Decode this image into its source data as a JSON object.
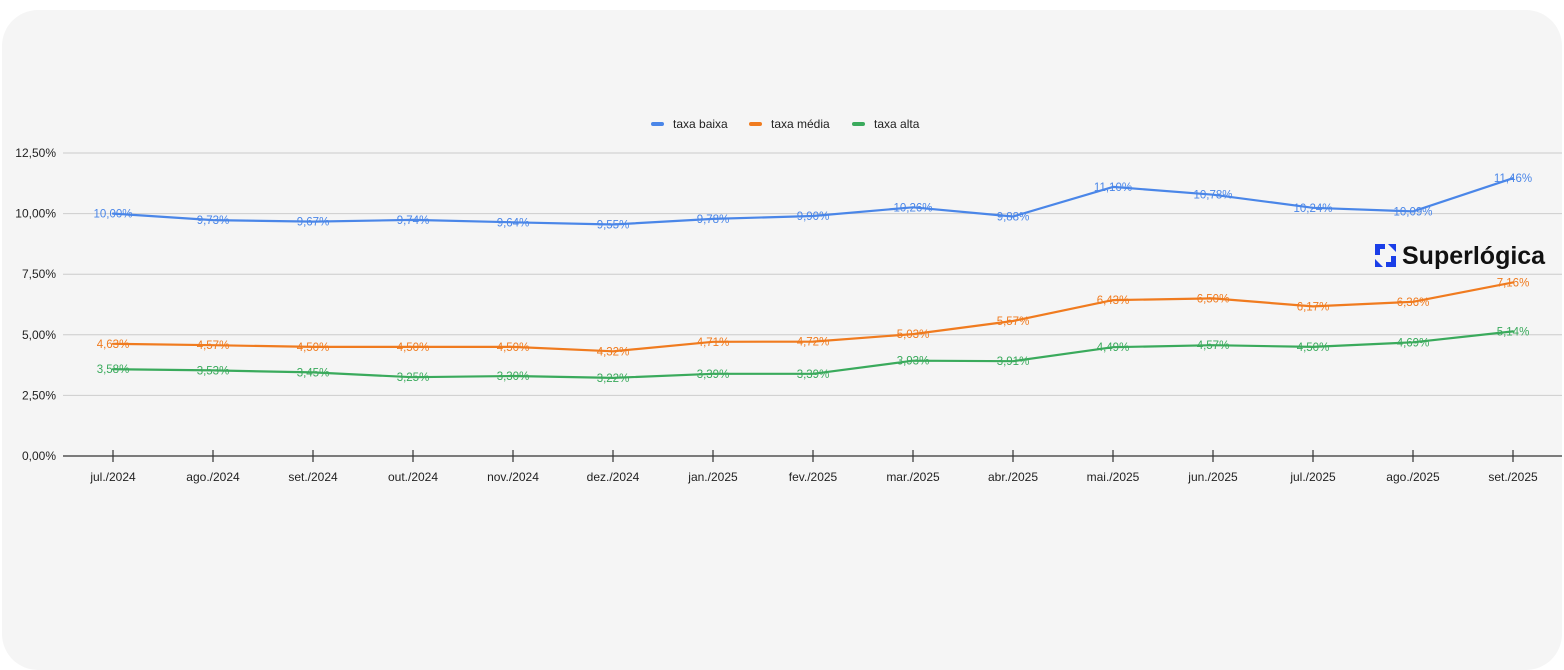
{
  "brand": {
    "logo_text": "Superlógica"
  },
  "chart_data": {
    "type": "line",
    "title": "",
    "xlabel": "",
    "ylabel": "",
    "categories": [
      "jul./2024",
      "ago./2024",
      "set./2024",
      "out./2024",
      "nov./2024",
      "dez./2024",
      "jan./2025",
      "fev./2025",
      "mar./2025",
      "abr./2025",
      "mai./2025",
      "jun./2025",
      "jul./2025",
      "ago./2025",
      "set./2025"
    ],
    "ylim": [
      0,
      12.5
    ],
    "yticks": [
      0,
      2.5,
      5,
      7.5,
      10,
      12.5
    ],
    "ytick_labels": [
      "0,00%",
      "2,50%",
      "5,00%",
      "7,50%",
      "10,00%",
      "12,50%"
    ],
    "grid": true,
    "legend": "top-center",
    "series": [
      {
        "name": "taxa baixa",
        "color": "#4a86e8",
        "values": [
          10.0,
          9.73,
          9.67,
          9.74,
          9.64,
          9.55,
          9.78,
          9.9,
          10.26,
          9.88,
          11.1,
          10.78,
          10.24,
          10.09,
          11.46
        ],
        "labels": [
          "10,00%",
          "9,73%",
          "9,67%",
          "9,74%",
          "9,64%",
          "9,55%",
          "9,78%",
          "9,90%",
          "10,26%",
          "9,88%",
          "11,10%",
          "10,78%",
          "10,24%",
          "10,09%",
          "11,46%"
        ]
      },
      {
        "name": "taxa média",
        "color": "#f07b1f",
        "values": [
          4.63,
          4.57,
          4.5,
          4.5,
          4.5,
          4.32,
          4.71,
          4.72,
          5.03,
          5.57,
          6.43,
          6.5,
          6.17,
          6.36,
          7.16
        ],
        "labels": [
          "4,63%",
          "4,57%",
          "4,50%",
          "4,50%",
          "4,50%",
          "4,32%",
          "4,71%",
          "4,72%",
          "5,03%",
          "5,57%",
          "6,43%",
          "6,50%",
          "6,17%",
          "6,36%",
          "7,16%"
        ]
      },
      {
        "name": "taxa alta",
        "color": "#3aaa5c",
        "values": [
          3.58,
          3.53,
          3.45,
          3.25,
          3.3,
          3.22,
          3.39,
          3.39,
          3.93,
          3.91,
          4.49,
          4.57,
          4.5,
          4.69,
          5.14
        ],
        "labels": [
          "3,58%",
          "3,53%",
          "3,45%",
          "3,25%",
          "3,30%",
          "3,22%",
          "3,39%",
          "3,39%",
          "3,93%",
          "3,91%",
          "4,49%",
          "4,57%",
          "4,50%",
          "4,69%",
          "5,14%"
        ]
      }
    ]
  }
}
